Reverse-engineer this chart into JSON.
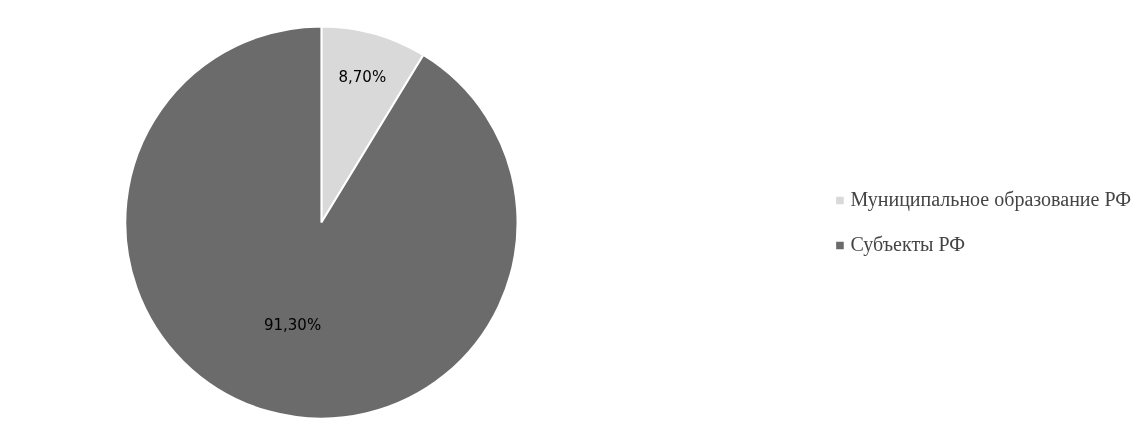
{
  "chart_data": {
    "type": "pie",
    "categories": [
      "Муниципальное образование РФ",
      "Субъекты РФ"
    ],
    "values": [
      8.7,
      91.3
    ],
    "colors": [
      "#d9d9d9",
      "#6b6b6b"
    ],
    "value_labels": [
      "8,70%",
      "91,30%"
    ],
    "legend": "right"
  }
}
